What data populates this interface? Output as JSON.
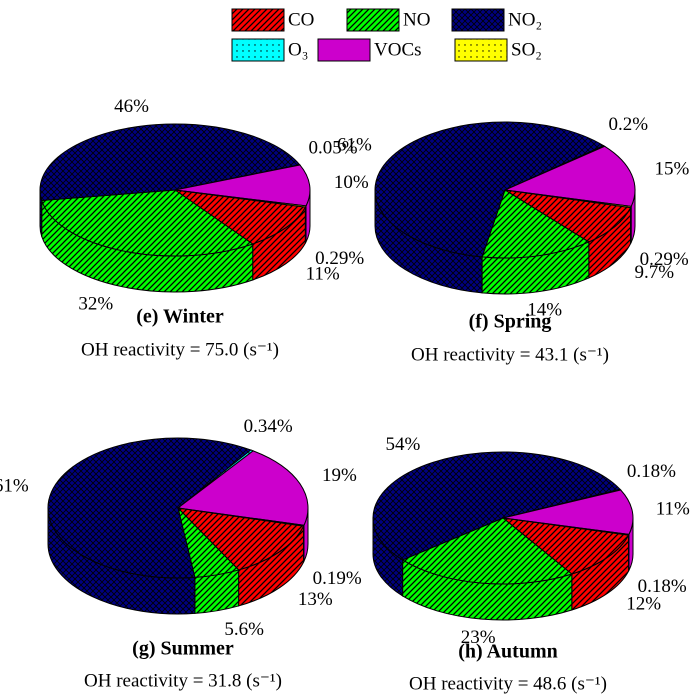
{
  "legend": {
    "labels": [
      "CO",
      "NO",
      "NO₂",
      "O₃",
      "VOCs",
      "SO₂"
    ],
    "colors": [
      "#ff0000",
      "#00ff00",
      "#000080",
      "#00ffff",
      "#cc00cc",
      "#ffff00"
    ]
  },
  "chart_data": [
    {
      "type": "pie",
      "title": "(e) Winter",
      "subtitle": "OH reactivity = 75.0  (s⁻¹)",
      "values": [
        11,
        32,
        46,
        0.05,
        10,
        0.29
      ],
      "value_labels": [
        "11%",
        "32%",
        "46%",
        "0.05%",
        "10%",
        "0.29%"
      ]
    },
    {
      "type": "pie",
      "title": "(f) Spring",
      "subtitle": "OH reactivity = 43.1  (s⁻¹)",
      "values": [
        9.7,
        14,
        61,
        0.2,
        15,
        0.29
      ],
      "value_labels": [
        "9.7%",
        "14%",
        "61%",
        "0.2%",
        "15%",
        "0.29%"
      ]
    },
    {
      "type": "pie",
      "title": "(g) Summer",
      "subtitle": "OH reactivity = 31.8  (s⁻¹)",
      "values": [
        13,
        5.6,
        61,
        0.34,
        19,
        0.19
      ],
      "value_labels": [
        "13%",
        "5.6%",
        "61%",
        "0.34%",
        "19%",
        "0.19%"
      ]
    },
    {
      "type": "pie",
      "title": "(h) Autumn",
      "subtitle": "OH reactivity = 48.6  (s⁻¹)",
      "values": [
        12,
        23,
        54,
        0.18,
        11,
        0.18
      ],
      "value_labels": [
        "12%",
        "23%",
        "54%",
        "0.18%",
        "11%",
        "0.18%"
      ]
    }
  ]
}
